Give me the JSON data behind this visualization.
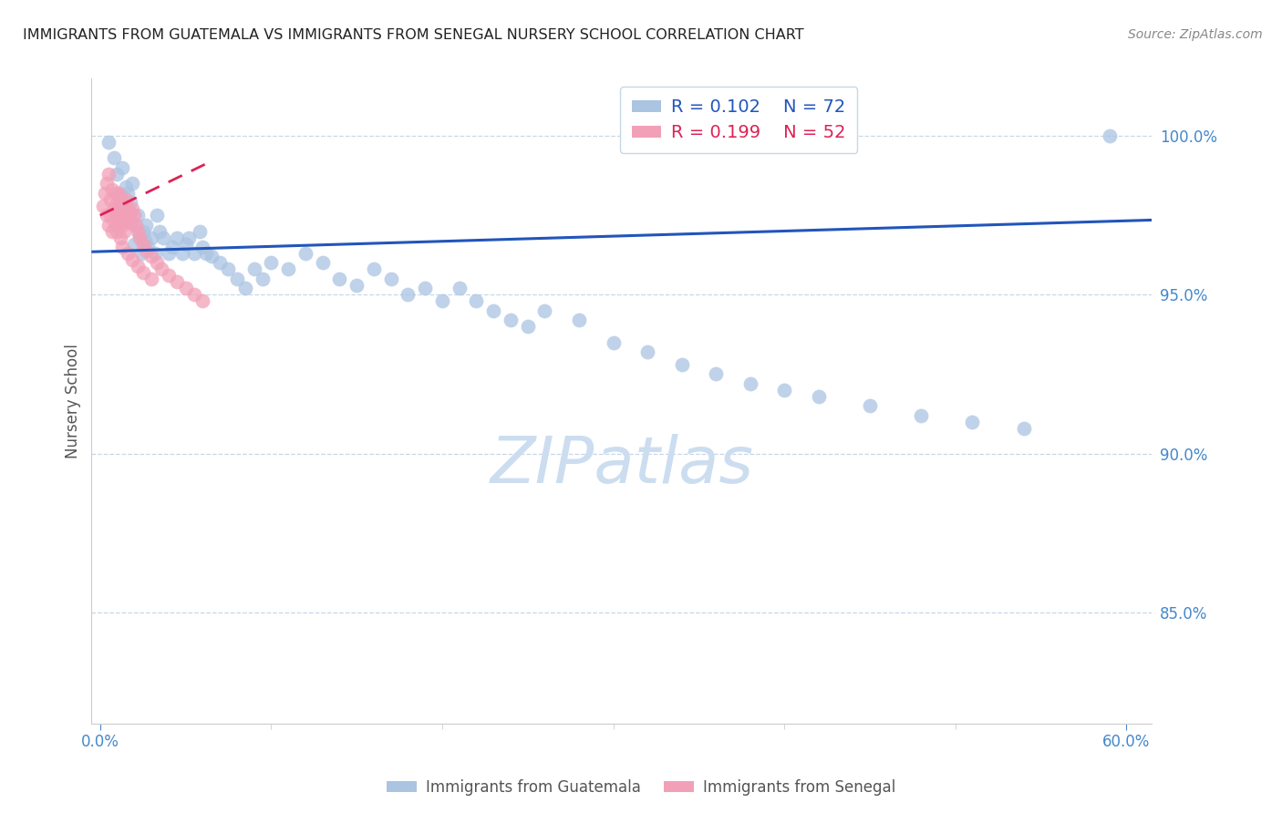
{
  "title": "IMMIGRANTS FROM GUATEMALA VS IMMIGRANTS FROM SENEGAL NURSERY SCHOOL CORRELATION CHART",
  "source": "Source: ZipAtlas.com",
  "ylabel": "Nursery School",
  "ylabel_ticks": [
    "85.0%",
    "90.0%",
    "95.0%",
    "100.0%"
  ],
  "ylabel_vals": [
    0.85,
    0.9,
    0.95,
    1.0
  ],
  "ylim": [
    0.815,
    1.018
  ],
  "xlim": [
    -0.005,
    0.615
  ],
  "legend_blue_r": "0.102",
  "legend_blue_n": "72",
  "legend_pink_r": "0.199",
  "legend_pink_n": "52",
  "blue_color": "#aac4e2",
  "pink_color": "#f2a0b8",
  "line_blue_color": "#2255bb",
  "line_pink_color": "#dd2255",
  "grid_color": "#c5d8e8",
  "axis_color": "#cccccc",
  "label_color": "#4488cc",
  "watermark_color": "#ccddf0",
  "blue_scatter_x": [
    0.005,
    0.008,
    0.01,
    0.012,
    0.013,
    0.015,
    0.015,
    0.016,
    0.017,
    0.018,
    0.019,
    0.02,
    0.02,
    0.022,
    0.023,
    0.024,
    0.025,
    0.026,
    0.027,
    0.028,
    0.03,
    0.032,
    0.033,
    0.035,
    0.037,
    0.04,
    0.042,
    0.045,
    0.048,
    0.05,
    0.052,
    0.055,
    0.058,
    0.06,
    0.062,
    0.065,
    0.07,
    0.075,
    0.08,
    0.085,
    0.09,
    0.095,
    0.1,
    0.11,
    0.12,
    0.13,
    0.14,
    0.15,
    0.16,
    0.17,
    0.18,
    0.19,
    0.2,
    0.21,
    0.22,
    0.23,
    0.24,
    0.25,
    0.26,
    0.28,
    0.3,
    0.32,
    0.34,
    0.36,
    0.38,
    0.4,
    0.42,
    0.45,
    0.48,
    0.51,
    0.54,
    0.59
  ],
  "blue_scatter_y": [
    0.998,
    0.993,
    0.988,
    0.981,
    0.99,
    0.984,
    0.977,
    0.982,
    0.976,
    0.979,
    0.985,
    0.972,
    0.966,
    0.975,
    0.969,
    0.963,
    0.97,
    0.967,
    0.972,
    0.965,
    0.968,
    0.963,
    0.975,
    0.97,
    0.968,
    0.963,
    0.965,
    0.968,
    0.963,
    0.966,
    0.968,
    0.963,
    0.97,
    0.965,
    0.963,
    0.962,
    0.96,
    0.958,
    0.955,
    0.952,
    0.958,
    0.955,
    0.96,
    0.958,
    0.963,
    0.96,
    0.955,
    0.953,
    0.958,
    0.955,
    0.95,
    0.952,
    0.948,
    0.952,
    0.948,
    0.945,
    0.942,
    0.94,
    0.945,
    0.942,
    0.935,
    0.932,
    0.928,
    0.925,
    0.922,
    0.92,
    0.918,
    0.915,
    0.912,
    0.91,
    0.908,
    1.0
  ],
  "pink_scatter_x": [
    0.002,
    0.003,
    0.004,
    0.004,
    0.005,
    0.005,
    0.006,
    0.006,
    0.007,
    0.007,
    0.008,
    0.008,
    0.009,
    0.009,
    0.01,
    0.01,
    0.011,
    0.011,
    0.012,
    0.012,
    0.013,
    0.013,
    0.014,
    0.014,
    0.015,
    0.015,
    0.016,
    0.017,
    0.018,
    0.019,
    0.02,
    0.021,
    0.022,
    0.023,
    0.025,
    0.027,
    0.03,
    0.033,
    0.036,
    0.04,
    0.045,
    0.05,
    0.055,
    0.06,
    0.013,
    0.016,
    0.019,
    0.022,
    0.025,
    0.03,
    0.01,
    0.012
  ],
  "pink_scatter_y": [
    0.978,
    0.982,
    0.985,
    0.975,
    0.988,
    0.972,
    0.98,
    0.975,
    0.983,
    0.97,
    0.977,
    0.973,
    0.982,
    0.976,
    0.979,
    0.972,
    0.982,
    0.975,
    0.98,
    0.973,
    0.978,
    0.972,
    0.976,
    0.97,
    0.98,
    0.973,
    0.977,
    0.975,
    0.973,
    0.977,
    0.975,
    0.972,
    0.97,
    0.968,
    0.966,
    0.964,
    0.962,
    0.96,
    0.958,
    0.956,
    0.954,
    0.952,
    0.95,
    0.948,
    0.965,
    0.963,
    0.961,
    0.959,
    0.957,
    0.955,
    0.97,
    0.968
  ],
  "blue_trend_x": [
    -0.005,
    0.615
  ],
  "blue_trend_y": [
    0.9635,
    0.9735
  ],
  "pink_trend_x": [
    0.0,
    0.065
  ],
  "pink_trend_y": [
    0.975,
    0.992
  ],
  "xtick_minor": [
    0.1,
    0.2,
    0.3,
    0.4,
    0.5
  ],
  "xtick_label_positions": [
    0.0,
    0.6
  ],
  "xtick_labels": [
    "0.0%",
    "60.0%"
  ]
}
